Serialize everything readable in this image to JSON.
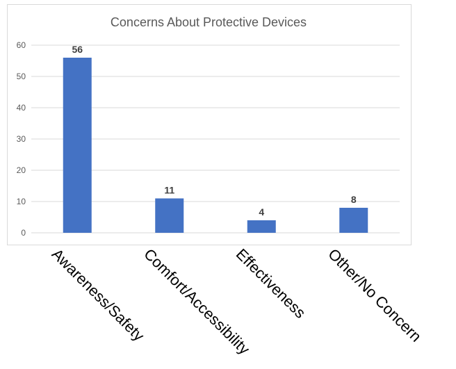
{
  "chart_data": {
    "type": "bar",
    "title": "Concerns About Protective Devices",
    "categories": [
      "Awareness/Safety",
      "Comfort/Accessibility",
      "Effectiveness",
      "Other/No Concern"
    ],
    "values": [
      56,
      11,
      4,
      8
    ],
    "data_labels": [
      "56",
      "11",
      "4",
      "8"
    ],
    "yticks": [
      "0",
      "10",
      "20",
      "30",
      "40",
      "50",
      "60"
    ],
    "ylim": [
      0,
      60
    ],
    "grid": true,
    "legend": "none",
    "bar_color": "#4472c4"
  }
}
